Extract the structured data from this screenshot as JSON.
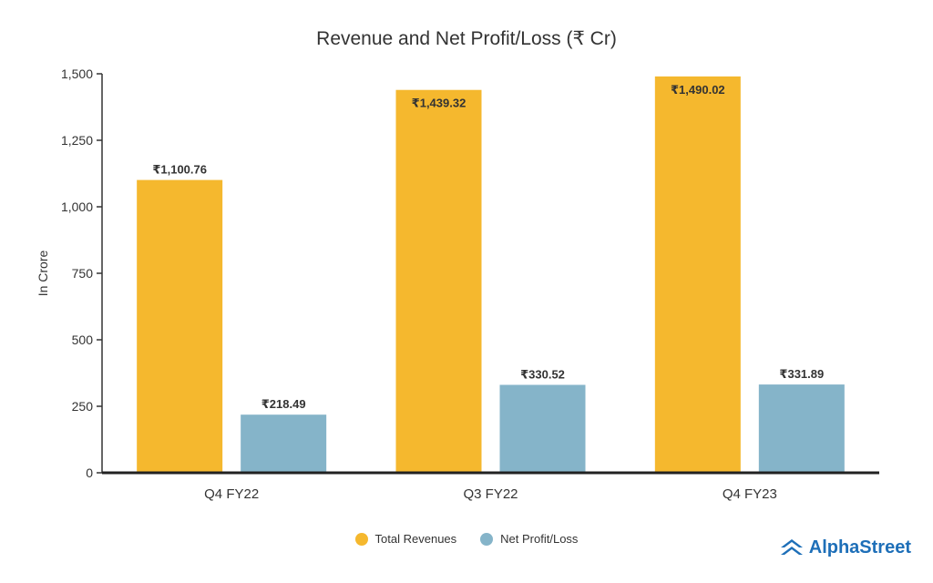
{
  "chart_data": {
    "type": "bar",
    "title": "Revenue and Net Profit/Loss (₹ Cr)",
    "xlabel": "",
    "ylabel": "In Crore",
    "ylim": [
      0,
      1500
    ],
    "yticks": [
      "0",
      "250",
      "500",
      "750",
      "1,000",
      "1,250",
      "1,500"
    ],
    "ytick_values": [
      0,
      250,
      500,
      750,
      1000,
      1250,
      1500
    ],
    "categories": [
      "Q4 FY22",
      "Q3 FY22",
      "Q4 FY23"
    ],
    "series": [
      {
        "name": "Total Revenues",
        "color": "#f5b82e",
        "values": [
          1100.76,
          1439.32,
          1490.02
        ],
        "labels": [
          "₹1,100.76",
          "₹1,439.32",
          "₹1,490.02"
        ]
      },
      {
        "name": "Net Profit/Loss",
        "color": "#85b4c9",
        "values": [
          218.49,
          330.52,
          331.89
        ],
        "labels": [
          "₹218.49",
          "₹330.52",
          "₹331.89"
        ]
      }
    ],
    "grid": false,
    "legend": "bottom-center"
  },
  "brand": {
    "name": "AlphaStreet",
    "color": "#1e6fb8"
  }
}
